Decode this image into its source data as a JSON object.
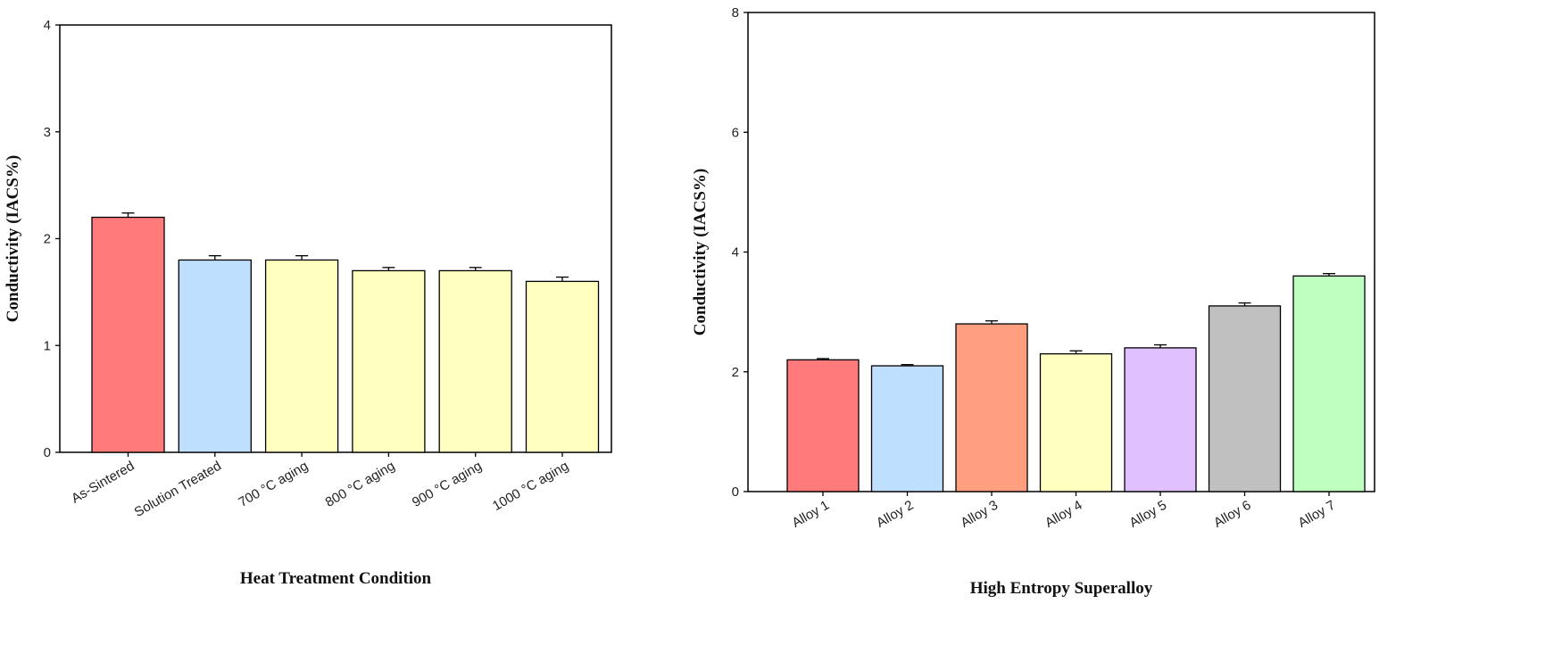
{
  "chart_data": [
    {
      "type": "bar",
      "xlabel": "Heat Treatment Condition",
      "ylabel": "Conductivity (IACS%)",
      "ylim": [
        0,
        4
      ],
      "yticks": [
        0,
        1,
        2,
        3,
        4
      ],
      "categories": [
        "As-Sintered",
        "Solution Treated",
        "700 °C aging",
        "800 °C aging",
        "900  °C aging",
        "1000  °C aging"
      ],
      "values": [
        2.2,
        1.8,
        1.8,
        1.7,
        1.7,
        1.6
      ],
      "errors": [
        0.04,
        0.04,
        0.04,
        0.03,
        0.03,
        0.04
      ],
      "colors": [
        "#ff7b7b",
        "#bfdfff",
        "#ffffc0",
        "#ffffc0",
        "#ffffc0",
        "#ffffc0"
      ],
      "grid": false
    },
    {
      "type": "bar",
      "xlabel": "High Entropy Superalloy",
      "ylabel": "Conductivity (IACS%)",
      "ylim": [
        0,
        8
      ],
      "yticks": [
        0,
        2,
        4,
        6,
        8
      ],
      "categories": [
        "Alloy 1",
        "Alloy 2",
        "Alloy 3",
        "Alloy 4",
        "Alloy 5",
        "Alloy 6",
        "Alloy 7"
      ],
      "values": [
        2.2,
        2.1,
        2.8,
        2.3,
        2.4,
        3.1,
        3.6
      ],
      "errors": [
        0.02,
        0.02,
        0.05,
        0.05,
        0.05,
        0.05,
        0.04
      ],
      "colors": [
        "#ff7b7b",
        "#bfdfff",
        "#ff9f7f",
        "#ffffc0",
        "#e0c0ff",
        "#c0c0c0",
        "#bfffbf"
      ],
      "grid": false
    }
  ]
}
